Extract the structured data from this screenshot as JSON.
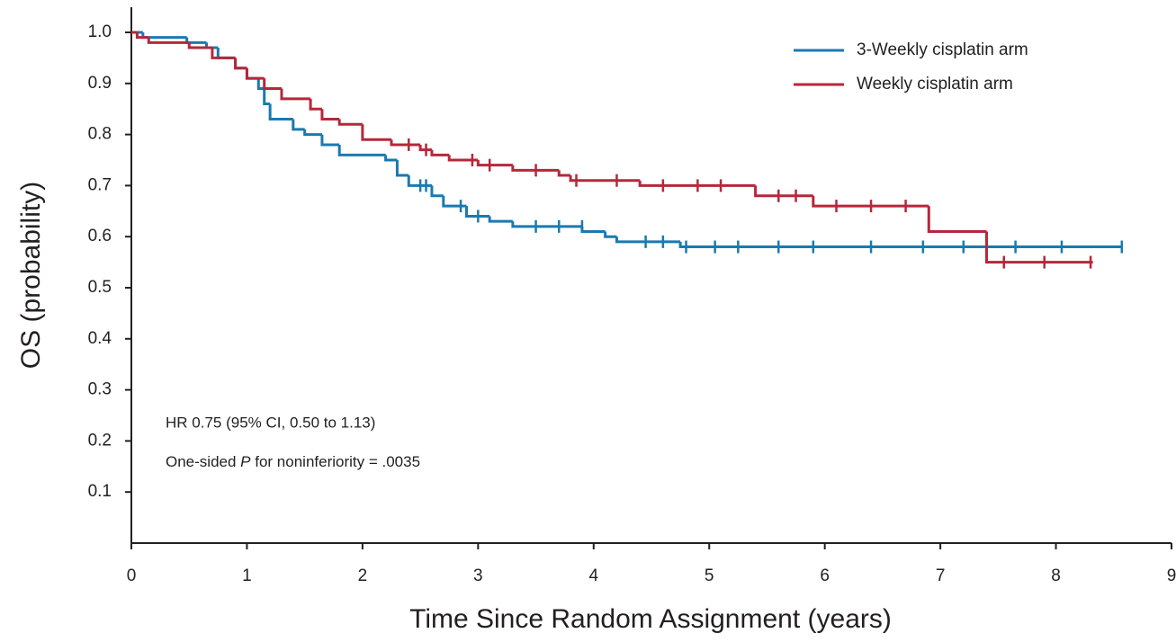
{
  "chart_data": {
    "type": "step",
    "xlabel": "Time Since Random Assignment (years)",
    "ylabel": "OS (probability)",
    "annotations": [
      "HR 0.75 (95% CI, 0.50 to 1.13)",
      [
        "One-sided ",
        "P",
        " for noninferiority = .0035"
      ]
    ],
    "xlim": [
      0,
      9
    ],
    "ylim": [
      0,
      1.05
    ],
    "xticks": [
      0,
      1,
      2,
      3,
      4,
      5,
      6,
      7,
      8,
      9
    ],
    "yticks": [
      0.1,
      0.2,
      0.3,
      0.4,
      0.5,
      0.6,
      0.7,
      0.8,
      0.9,
      {
        "value": 1,
        "label": "1.0"
      }
    ],
    "legend": "upper right",
    "series": [
      {
        "name": "3-Weekly cisplatin arm",
        "color": "#1a7ab0",
        "x": [
          0,
          0.1,
          0.48,
          0.65,
          0.75,
          0.9,
          1.0,
          1.1,
          1.15,
          1.2,
          1.4,
          1.5,
          1.65,
          1.8,
          2.2,
          2.3,
          2.4,
          2.6,
          2.7,
          2.9,
          3.1,
          3.3,
          3.9,
          4.1,
          4.2,
          4.75,
          8.57
        ],
        "values": [
          1.0,
          0.99,
          0.98,
          0.97,
          0.95,
          0.93,
          0.91,
          0.89,
          0.86,
          0.83,
          0.81,
          0.8,
          0.78,
          0.76,
          0.75,
          0.72,
          0.7,
          0.68,
          0.66,
          0.64,
          0.63,
          0.62,
          0.61,
          0.6,
          0.59,
          0.58,
          0.58
        ],
        "censor_x": [
          2.5,
          2.55,
          2.85,
          3.0,
          3.5,
          3.7,
          3.9,
          4.45,
          4.6,
          4.8,
          5.05,
          5.25,
          5.6,
          5.9,
          6.4,
          6.85,
          7.2,
          7.65,
          8.05,
          8.57
        ],
        "censor_y": [
          0.7,
          0.7,
          0.66,
          0.64,
          0.62,
          0.62,
          0.62,
          0.59,
          0.59,
          0.58,
          0.58,
          0.58,
          0.58,
          0.58,
          0.58,
          0.58,
          0.58,
          0.58,
          0.58,
          0.58
        ]
      },
      {
        "name": "Weekly cisplatin arm",
        "color": "#b5283a",
        "x": [
          0,
          0.05,
          0.15,
          0.5,
          0.7,
          0.9,
          1.0,
          1.15,
          1.3,
          1.55,
          1.65,
          1.8,
          2.0,
          2.25,
          2.5,
          2.6,
          2.75,
          3.0,
          3.3,
          3.7,
          3.8,
          4.4,
          5.4,
          5.9,
          6.9,
          7.4,
          8.32
        ],
        "values": [
          1.0,
          0.99,
          0.98,
          0.97,
          0.95,
          0.93,
          0.91,
          0.89,
          0.87,
          0.85,
          0.83,
          0.82,
          0.79,
          0.78,
          0.77,
          0.76,
          0.75,
          0.74,
          0.73,
          0.72,
          0.71,
          0.7,
          0.68,
          0.66,
          0.61,
          0.55,
          0.55
        ],
        "censor_x": [
          2.4,
          2.55,
          2.95,
          3.1,
          3.5,
          3.85,
          4.2,
          4.6,
          4.9,
          5.1,
          5.6,
          5.75,
          6.1,
          6.4,
          6.7,
          7.55,
          7.9,
          8.3
        ],
        "censor_y": [
          0.78,
          0.77,
          0.75,
          0.74,
          0.73,
          0.71,
          0.71,
          0.7,
          0.7,
          0.7,
          0.68,
          0.68,
          0.66,
          0.66,
          0.66,
          0.55,
          0.55,
          0.55
        ]
      }
    ]
  }
}
